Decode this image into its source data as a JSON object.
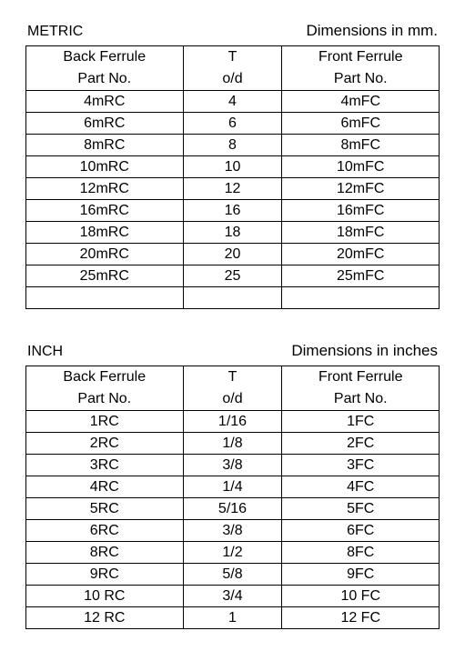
{
  "metric": {
    "label": "METRIC",
    "units": "Dimensions in mm.",
    "headers": {
      "col1_top": "Back Ferrule",
      "col1_bot": "Part No.",
      "col2_top": "T",
      "col2_bot": "o/d",
      "col3_top": "Front Ferrule",
      "col3_bot": "Part No."
    },
    "rows": [
      {
        "back": "4mRC",
        "t": "4",
        "front": "4mFC"
      },
      {
        "back": "6mRC",
        "t": "6",
        "front": "6mFC"
      },
      {
        "back": "8mRC",
        "t": "8",
        "front": "8mFC"
      },
      {
        "back": "10mRC",
        "t": "10",
        "front": "10mFC"
      },
      {
        "back": "12mRC",
        "t": "12",
        "front": "12mFC"
      },
      {
        "back": "16mRC",
        "t": "16",
        "front": "16mFC"
      },
      {
        "back": "18mRC",
        "t": "18",
        "front": "18mFC"
      },
      {
        "back": "20mRC",
        "t": "20",
        "front": "20mFC"
      },
      {
        "back": "25mRC",
        "t": "25",
        "front": "25mFC"
      },
      {
        "back": "",
        "t": "",
        "front": ""
      }
    ]
  },
  "inch": {
    "label": "INCH",
    "units": "Dimensions in inches",
    "headers": {
      "col1_top": "Back Ferrule",
      "col1_bot": "Part No.",
      "col2_top": "T",
      "col2_bot": "o/d",
      "col3_top": "Front Ferrule",
      "col3_bot": "Part No."
    },
    "rows": [
      {
        "back": "1RC",
        "t": "1/16",
        "front": "1FC"
      },
      {
        "back": "2RC",
        "t": "1/8",
        "front": "2FC"
      },
      {
        "back": "3RC",
        "t": "3/8",
        "front": "3FC"
      },
      {
        "back": "4RC",
        "t": "1/4",
        "front": "4FC"
      },
      {
        "back": "5RC",
        "t": "5/16",
        "front": "5FC"
      },
      {
        "back": "6RC",
        "t": "3/8",
        "front": "6FC"
      },
      {
        "back": "8RC",
        "t": "1/2",
        "front": "8FC"
      },
      {
        "back": "9RC",
        "t": "5/8",
        "front": "9FC"
      },
      {
        "back": "10 RC",
        "t": "3/4",
        "front": "10 FC"
      },
      {
        "back": "12 RC",
        "t": "1",
        "front": "12 FC"
      }
    ]
  }
}
